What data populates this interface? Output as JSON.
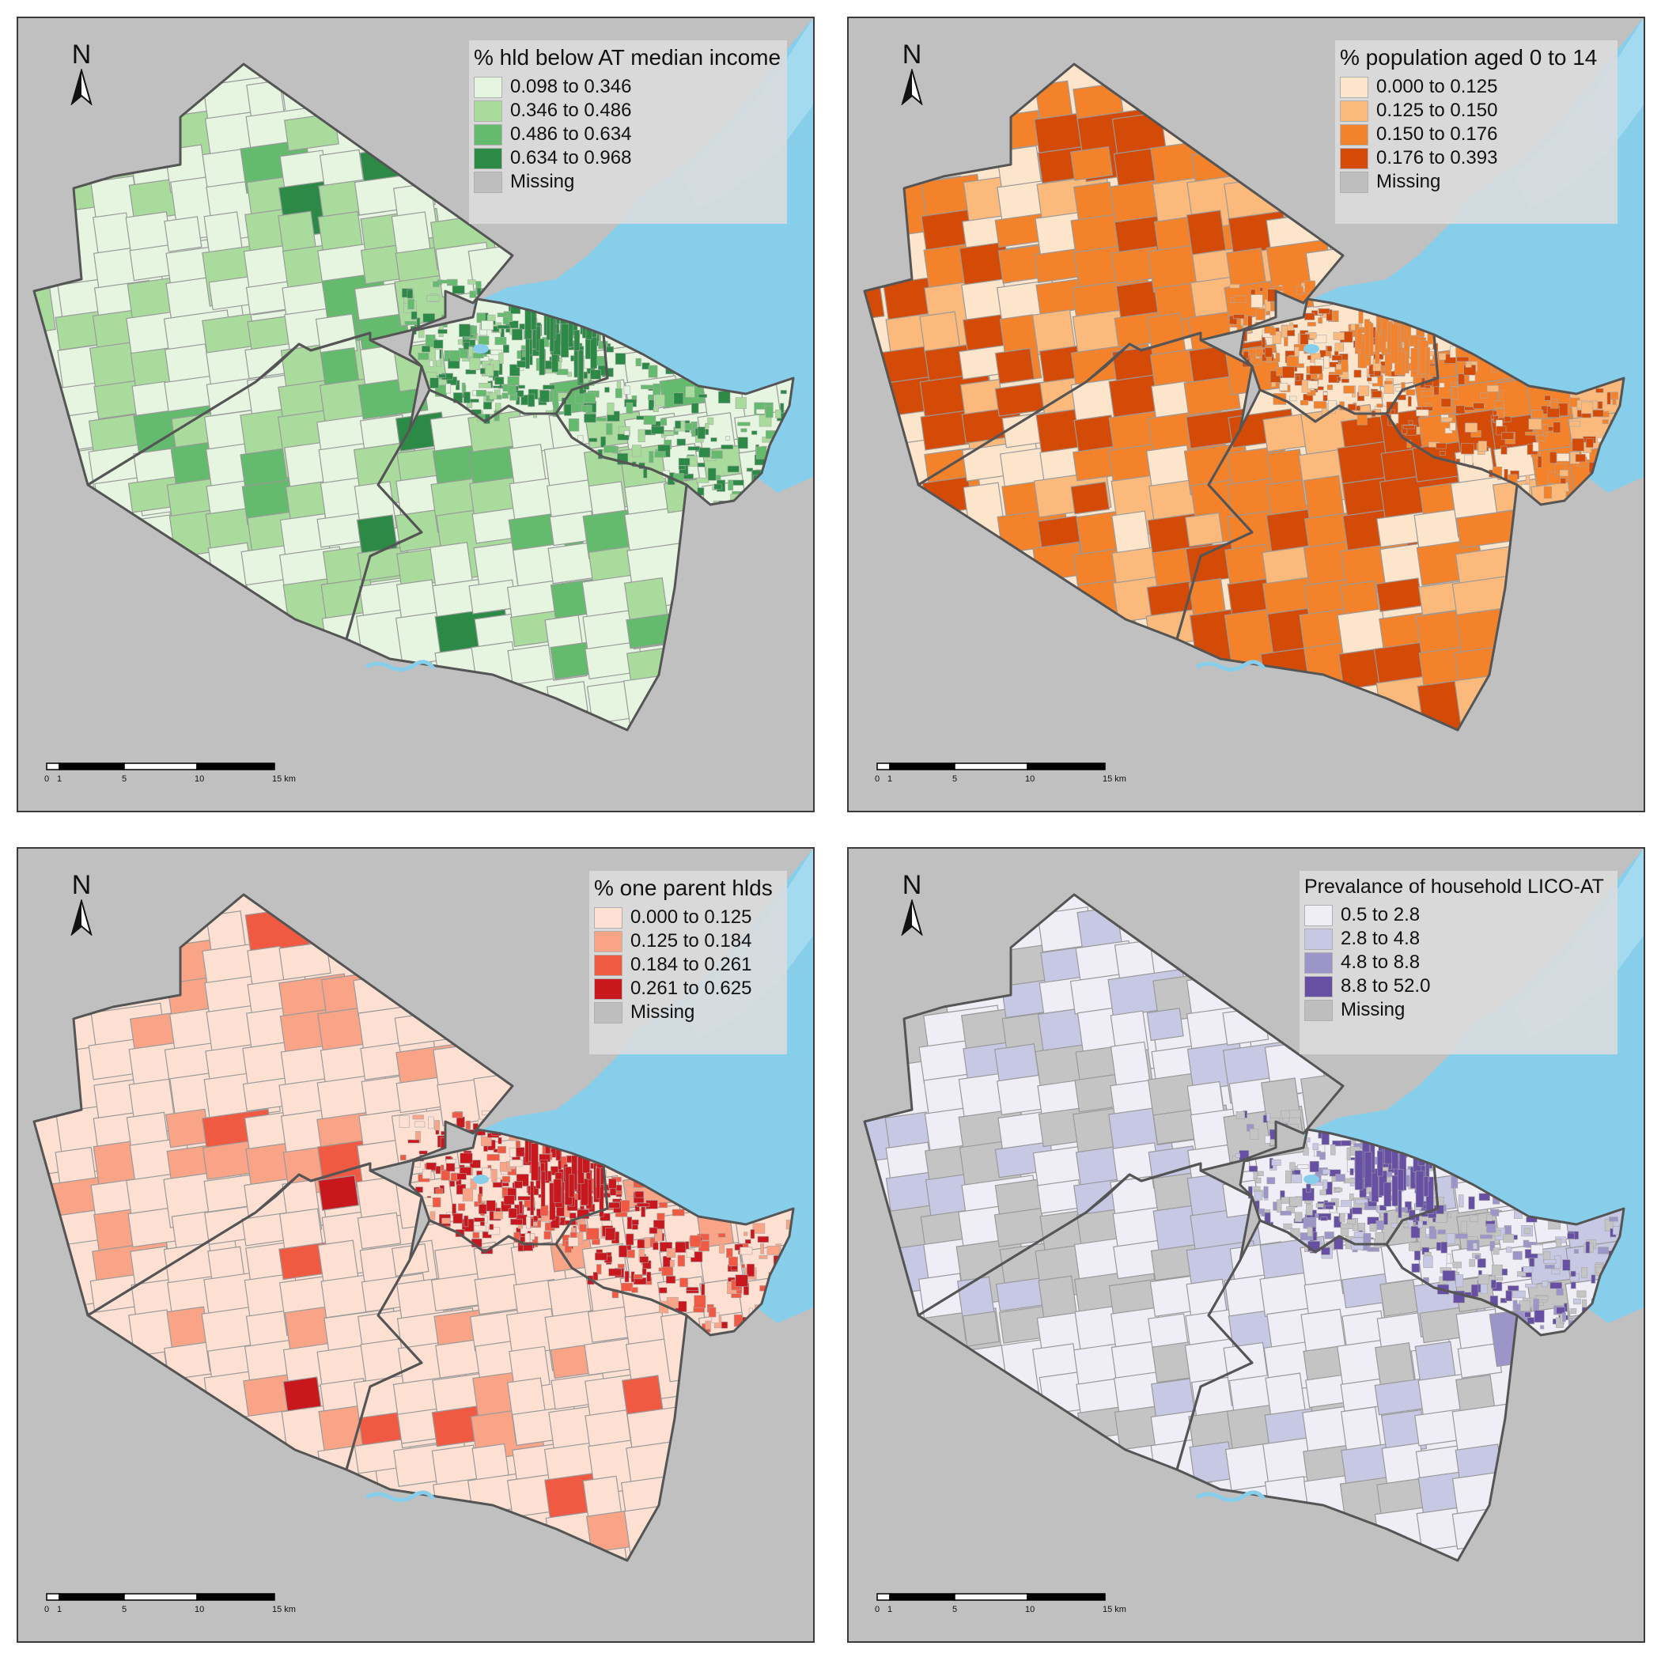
{
  "panels": [
    {
      "legend_title": "% hld below AT median income",
      "legend": [
        {
          "label": "0.098 to 0.346",
          "color": "#e5f5e0"
        },
        {
          "label": "0.346 to 0.486",
          "color": "#a9dc9c"
        },
        {
          "label": "0.486 to 0.634",
          "color": "#64bb6e"
        },
        {
          "label": "0.634 to 0.968",
          "color": "#2c8a46"
        },
        {
          "label": "Missing",
          "color": "#bebebe"
        }
      ]
    },
    {
      "legend_title": "% population aged 0 to 14",
      "legend": [
        {
          "label": "0.000 to 0.125",
          "color": "#fde5cc"
        },
        {
          "label": "0.125 to 0.150",
          "color": "#fbb97b"
        },
        {
          "label": "0.150 to 0.176",
          "color": "#f4822a"
        },
        {
          "label": "0.176 to 0.393",
          "color": "#d44a07"
        },
        {
          "label": "Missing",
          "color": "#bebebe"
        }
      ]
    },
    {
      "legend_title": "% one parent hlds",
      "legend": [
        {
          "label": "0.000 to 0.125",
          "color": "#fde0d2"
        },
        {
          "label": "0.125 to 0.184",
          "color": "#f9a487"
        },
        {
          "label": "0.184 to 0.261",
          "color": "#f05a43"
        },
        {
          "label": "0.261 to 0.625",
          "color": "#c8171d"
        },
        {
          "label": "Missing",
          "color": "#bebebe"
        }
      ]
    },
    {
      "legend_title": "Prevalance of household LICO-AT",
      "legend": [
        {
          "label": "0.5 to 2.8",
          "color": "#efedf5"
        },
        {
          "label": "2.8 to 4.8",
          "color": "#c7c8e4"
        },
        {
          "label": "4.8 to 8.8",
          "color": "#9b95c8"
        },
        {
          "label": "8.8 to 52.0",
          "color": "#6750a4"
        },
        {
          "label": "Missing",
          "color": "#bebebe"
        }
      ]
    }
  ],
  "north_label": "N",
  "scale_bar": {
    "labels": [
      "0",
      "1",
      "5",
      "10",
      "15 km"
    ]
  },
  "colors": {
    "background": "#c0c0c0",
    "water": "#87ceeb",
    "boundary": "#555555"
  }
}
